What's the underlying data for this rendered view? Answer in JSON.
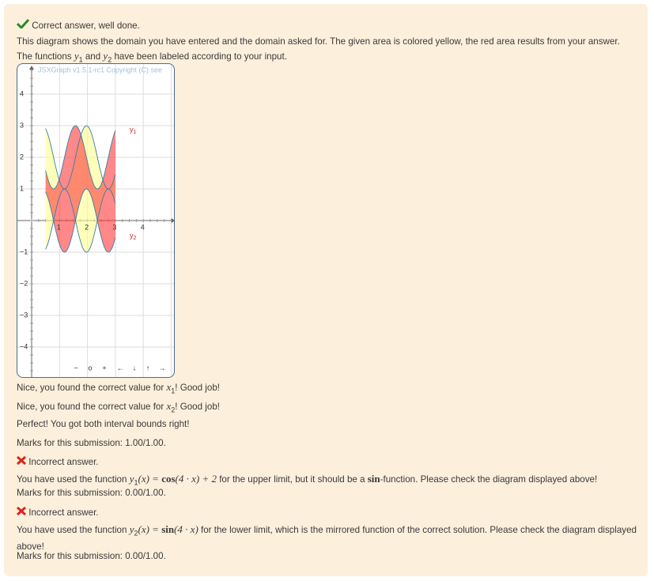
{
  "feedback1": {
    "status": "Correct answer, well done.",
    "line1": "This diagram shows the domain you have entered and the domain asked for. The given area is colored yellow, the red area results from your answer.",
    "line2": [
      "The functions ",
      "y",
      "1",
      " and ",
      "y",
      "2",
      " have been labeled according to your input."
    ]
  },
  "graph": {
    "copyright": "JSXGraph v1.5.1-rc1 Copyright (C) see",
    "xticks": [
      "1",
      "2",
      "3",
      "4"
    ],
    "yticks": [
      "4",
      "3",
      "2",
      "1",
      "−1",
      "−2",
      "−3",
      "−4"
    ],
    "labels": [
      [
        "y",
        "1"
      ],
      [
        "y",
        "2"
      ]
    ],
    "nav": [
      "−",
      "o",
      "+",
      "←",
      "↓",
      "↑",
      "→"
    ]
  },
  "checks": [
    [
      "Nice, you found the correct value for ",
      "x",
      "1",
      "! Good job!"
    ],
    [
      "Nice, you found the correct value for ",
      "x",
      "2",
      "! Good job!"
    ],
    [
      "Perfect! You got both interval bounds right!"
    ]
  ],
  "marks1": "Marks for this submission: 1.00/1.00.",
  "feedback2": {
    "status": "Incorrect answer.",
    "text": [
      "You have used the function ",
      "y",
      "1",
      "(x) = ",
      "cos",
      "(4 · x) + 2",
      " for the upper limit, but it should be a ",
      "sin",
      "-function. Please check the diagram displayed above!"
    ],
    "marks": "Marks for this submission: 0.00/1.00."
  },
  "feedback3": {
    "status": "Incorrect answer.",
    "text": [
      "You have used the function ",
      "y",
      "2",
      "(x) = ",
      "sin",
      "(4 · x)",
      " for the lower limit, which is the mirrored function of the correct solution. Please check the diagram displayed above!"
    ],
    "marks": "Marks for this submission: 0.00/1.00."
  }
}
